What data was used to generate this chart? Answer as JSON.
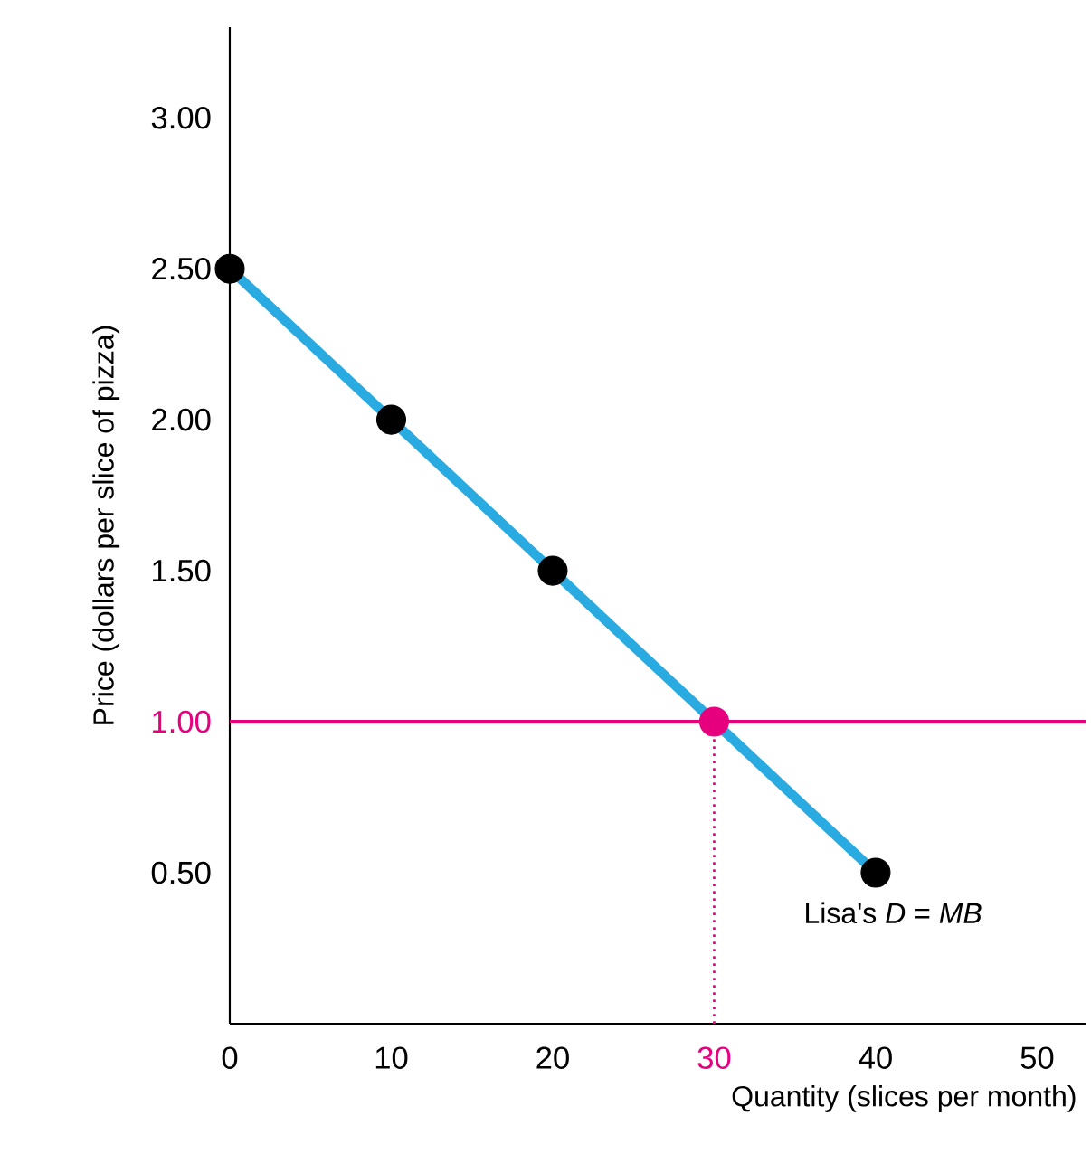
{
  "chart_data": {
    "type": "line",
    "xlabel": "Quantity (slices per month)",
    "ylabel": "Price (dollars per slice of pizza)",
    "x": [
      0,
      10,
      20,
      30,
      40
    ],
    "xlim": [
      0,
      53
    ],
    "ylim": [
      0,
      3.3
    ],
    "xticks": [
      0,
      10,
      20,
      30,
      40,
      50
    ],
    "yticks": [
      {
        "value": 0.5,
        "label": "0.50"
      },
      {
        "value": 1,
        "label": "1.00"
      },
      {
        "value": 1.5,
        "label": "1.50"
      },
      {
        "value": 2,
        "label": "2.00"
      },
      {
        "value": 2.5,
        "label": "2.50"
      },
      {
        "value": 3,
        "label": "3.00"
      }
    ],
    "marker": "circle",
    "grid": false,
    "series": [
      {
        "color": "#29abe2",
        "values": [
          2.5,
          2,
          1.5,
          1,
          0.5
        ],
        "colors": [
          "#000000",
          "#000000",
          "#000000",
          "#e6007e",
          "#000000"
        ]
      },
      {
        "x": [
          30,
          30
        ],
        "values": [
          0,
          1
        ],
        "color": "#e6007e",
        "line_style": "dotted",
        "marker": "none"
      }
    ],
    "ref_lines": [
      {
        "axis": "y",
        "value": 1,
        "color": "#e6007e"
      }
    ],
    "annotations": [
      {
        "text": "Lisa's *D* = *MB*",
        "x": 40,
        "y": 0.5
      }
    ]
  }
}
